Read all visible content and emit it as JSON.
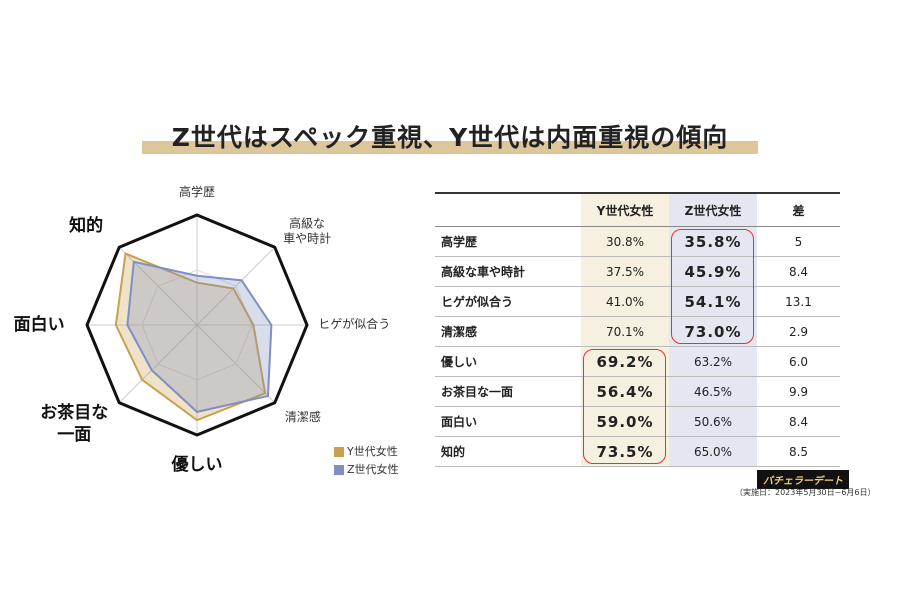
{
  "title": "Z世代はスペック重視、Y世代は内面重視の傾向",
  "chart_data": {
    "type": "radar",
    "categories": [
      "高学歴",
      "高級な\n車や時計",
      "ヒゲが似合う",
      "清潔感",
      "優しい",
      "お茶目な\n一面",
      "面白い",
      "知的"
    ],
    "series": [
      {
        "name": "Y世代女性",
        "color": "#c9a04e",
        "values": [
          30.8,
          37.5,
          41.0,
          70.1,
          69.2,
          56.4,
          59.0,
          73.5
        ]
      },
      {
        "name": "Z世代女性",
        "color": "#7f8fbf",
        "values": [
          35.8,
          45.9,
          54.1,
          73.0,
          63.2,
          46.5,
          50.6,
          65.0
        ]
      }
    ],
    "rlim": [
      0,
      80
    ]
  },
  "table": {
    "header": [
      "",
      "Y世代女性",
      "Z世代女性",
      "差"
    ],
    "rows": [
      [
        "高学歴",
        "30.8%",
        "35.8%",
        "5"
      ],
      [
        "高級な車や時計",
        "37.5%",
        "45.9%",
        "8.4"
      ],
      [
        "ヒゲが似合う",
        "41.0%",
        "54.1%",
        "13.1"
      ],
      [
        "清潔感",
        "70.1%",
        "73.0%",
        "2.9"
      ],
      [
        "優しい",
        "69.2%",
        "63.2%",
        "6.0"
      ],
      [
        "お茶目な一面",
        "56.4%",
        "46.5%",
        "9.9"
      ],
      [
        "面白い",
        "59.0%",
        "50.6%",
        "8.4"
      ],
      [
        "知的",
        "73.5%",
        "65.0%",
        "8.5"
      ]
    ]
  },
  "footer": {
    "logo": "バチェラーデート",
    "note": "（実施日：2023年5月30日~6月6日）"
  }
}
